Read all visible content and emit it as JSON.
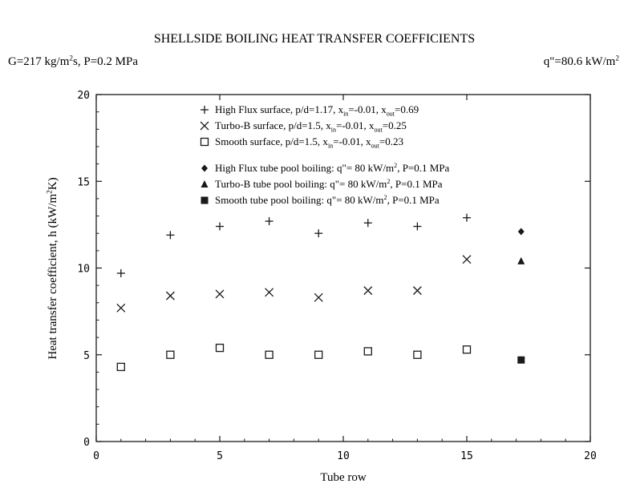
{
  "header": {
    "title": "SHELLSIDE BOILING HEAT TRANSFER COEFFICIENTS",
    "conditions_left": {
      "prefix": "G=217 kg/m",
      "sup": "2",
      "suffix": "s, P=0.2 MPa"
    },
    "conditions_right": {
      "prefix": "q\"=80.6 kW/m",
      "sup": "2"
    }
  },
  "chart_data": {
    "type": "scatter",
    "xlabel": "Tube row",
    "ylabel": {
      "prefix": "Heat transfer coefficient, h  (kW/m",
      "sup": "2",
      "suffix": "K)"
    },
    "xlim": [
      0,
      20
    ],
    "ylim": [
      0,
      20
    ],
    "xticks": [
      "0",
      "5",
      "10",
      "15",
      "20"
    ],
    "yticks": [
      "0",
      "5",
      "10",
      "15",
      "20"
    ],
    "legend_placement": "top-center",
    "series": [
      {
        "name": "High Flux surface",
        "marker": "plus",
        "legend_parts": [
          {
            "t": "High Flux surface, p/d=1.17, x"
          },
          {
            "t": "in",
            "s": "sub"
          },
          {
            "t": "=-0.01, x"
          },
          {
            "t": "out",
            "s": "sub"
          },
          {
            "t": "=0.69"
          }
        ],
        "x": [
          1,
          3,
          5,
          7,
          9,
          11,
          13,
          15
        ],
        "y": [
          9.7,
          11.9,
          12.4,
          12.7,
          12.0,
          12.6,
          12.4,
          12.9
        ]
      },
      {
        "name": "Turbo-B surface",
        "marker": "cross",
        "legend_parts": [
          {
            "t": "Turbo-B surface, p/d=1.5,  x"
          },
          {
            "t": "in",
            "s": "sub"
          },
          {
            "t": "=-0.01, x"
          },
          {
            "t": "out",
            "s": "sub"
          },
          {
            "t": "=0.25"
          }
        ],
        "x": [
          1,
          3,
          5,
          7,
          9,
          11,
          13,
          15
        ],
        "y": [
          7.7,
          8.4,
          8.5,
          8.6,
          8.3,
          8.7,
          8.7,
          10.5
        ]
      },
      {
        "name": "Smooth surface",
        "marker": "square-open",
        "legend_parts": [
          {
            "t": "Smooth surface, p/d=1.5,  x"
          },
          {
            "t": "in",
            "s": "sub"
          },
          {
            "t": "=-0.01, x"
          },
          {
            "t": "out",
            "s": "sub"
          },
          {
            "t": "=0.23"
          }
        ],
        "x": [
          1,
          3,
          5,
          7,
          9,
          11,
          13,
          15
        ],
        "y": [
          4.3,
          5.0,
          5.4,
          5.0,
          5.0,
          5.2,
          5.0,
          5.3
        ]
      },
      {
        "name": "High Flux tube pool boiling",
        "marker": "diamond-filled",
        "legend_parts": [
          {
            "t": "High Flux tube pool boiling: q\"= 80 kW/m"
          },
          {
            "t": "2",
            "s": "sup"
          },
          {
            "t": ", P=0.1 MPa"
          }
        ],
        "x": [
          17.2
        ],
        "y": [
          12.1
        ]
      },
      {
        "name": "Turbo-B tube pool boiling",
        "marker": "triangle-filled",
        "legend_parts": [
          {
            "t": "Turbo-B tube pool boiling: q\"= 80 kW/m"
          },
          {
            "t": "2",
            "s": "sup"
          },
          {
            "t": ", P=0.1 MPa"
          }
        ],
        "x": [
          17.2
        ],
        "y": [
          10.4
        ]
      },
      {
        "name": "Smooth tube pool boiling",
        "marker": "square-filled",
        "legend_parts": [
          {
            "t": "Smooth tube pool boiling: q\"= 80 kW/m"
          },
          {
            "t": "2",
            "s": "sup"
          },
          {
            "t": ", P=0.1 MPa"
          }
        ],
        "x": [
          17.2
        ],
        "y": [
          4.7
        ]
      }
    ]
  }
}
